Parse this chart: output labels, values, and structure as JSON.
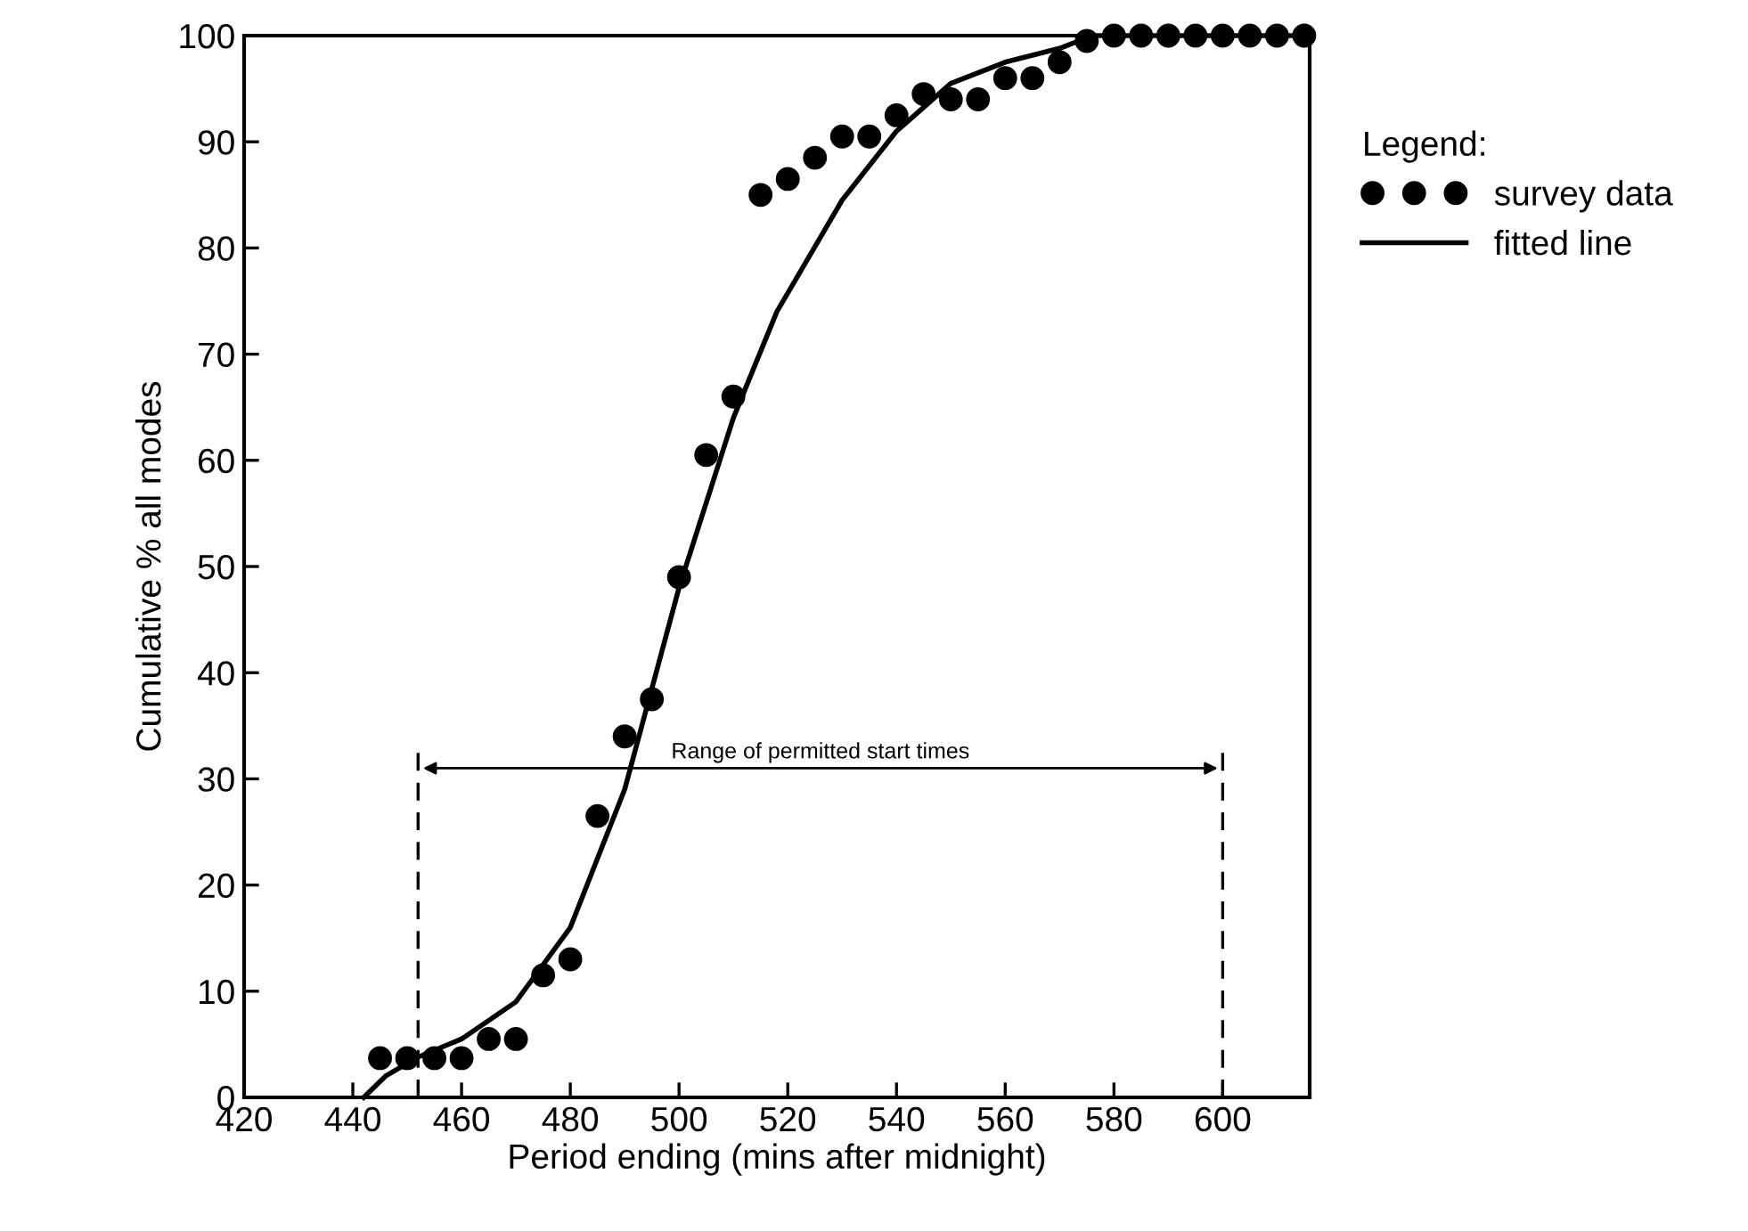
{
  "chart_data": {
    "type": "scatter",
    "xlabel": "Period ending (mins after midnight)",
    "ylabel": "Cumulative % all modes",
    "legend_title": "Legend:",
    "xlim": [
      420,
      616
    ],
    "xticks": [
      420,
      440,
      460,
      480,
      500,
      520,
      540,
      560,
      580,
      600
    ],
    "ylim": [
      0,
      100
    ],
    "yticks": [
      0,
      10,
      20,
      30,
      40,
      50,
      60,
      70,
      80,
      90,
      100
    ],
    "grid": false,
    "legend": "top right",
    "series": [
      {
        "name": "survey data",
        "color": "#000000",
        "marker": "circle",
        "x": [
          445,
          450,
          455,
          460,
          465,
          470,
          475,
          480,
          485,
          490,
          495,
          500,
          505,
          510,
          515,
          520,
          525,
          530,
          535,
          540,
          545,
          550,
          555,
          560,
          565,
          570,
          575,
          580,
          585,
          590,
          595,
          600,
          605,
          610,
          615
        ],
        "values": [
          3.7,
          3.7,
          3.7,
          3.7,
          5.5,
          5.5,
          11.5,
          13,
          26.5,
          34,
          37.5,
          49,
          60.5,
          66,
          85,
          86.5,
          88.5,
          90.5,
          90.5,
          92.5,
          94.5,
          94,
          94,
          96,
          96,
          97.5,
          99.5,
          100,
          100,
          100,
          100,
          100,
          100,
          100,
          100
        ]
      },
      {
        "name": "fitted line",
        "type": "line",
        "color": "#000000",
        "line_style": "solid",
        "x": [
          442,
          446,
          452,
          460,
          470,
          480,
          490,
          500,
          510,
          518,
          530,
          540,
          550,
          560,
          570,
          576,
          616
        ],
        "values": [
          0,
          2,
          3.8,
          5.5,
          9,
          16,
          29,
          48,
          64,
          74,
          84.5,
          91,
          95.5,
          97.5,
          98.8,
          100,
          100
        ]
      }
    ],
    "ref_lines": [
      {
        "axis": "x",
        "value": 452,
        "line_style": "dashed",
        "color": "#000000"
      },
      {
        "axis": "x",
        "value": 600,
        "line_style": "dashed",
        "color": "#000000"
      }
    ],
    "annotations": [
      "Range of permitted start times"
    ]
  }
}
